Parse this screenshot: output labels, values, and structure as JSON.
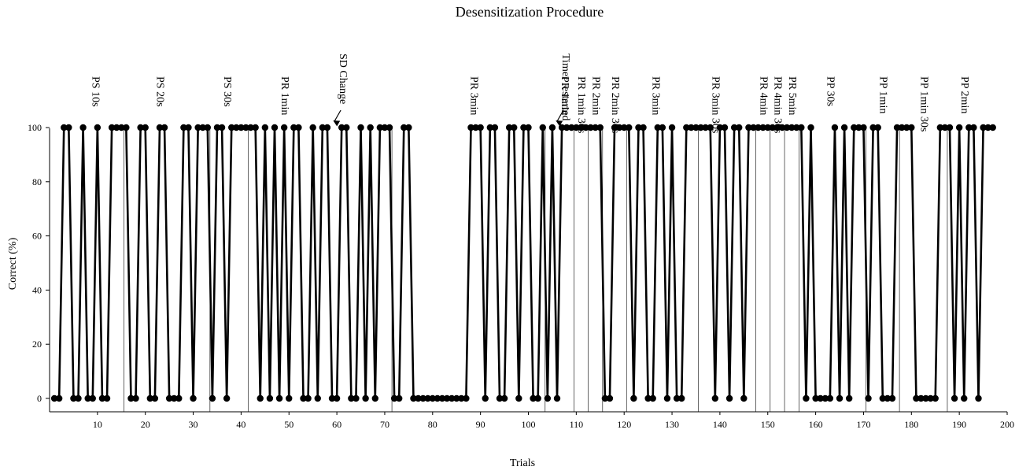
{
  "chart_data": {
    "type": "line",
    "title": "Desensitization Procedure",
    "xlabel": "Trials",
    "ylabel": "Correct (%)",
    "xlim": [
      0,
      200
    ],
    "ylim": [
      -5,
      100
    ],
    "xticks": [
      10,
      20,
      30,
      40,
      50,
      60,
      70,
      80,
      90,
      100,
      110,
      120,
      130,
      140,
      150,
      160,
      170,
      180,
      190,
      200
    ],
    "yticks": [
      0,
      20,
      40,
      60,
      80,
      100
    ],
    "grid": false,
    "legend": "none",
    "line_color": "#000000",
    "marker_color": "#000000",
    "series": [
      {
        "x": [
          1,
          2,
          3,
          4,
          5,
          6,
          7,
          8,
          9,
          10,
          11,
          12,
          13,
          14,
          15,
          16,
          17,
          18,
          19,
          20,
          21,
          22,
          23,
          24,
          25,
          26,
          27,
          28,
          29,
          30,
          31,
          32,
          33,
          34,
          35,
          36,
          37,
          38,
          39,
          40,
          41,
          42,
          43,
          44,
          45,
          46,
          47,
          48,
          49,
          50,
          51,
          52,
          53,
          54,
          55,
          56,
          57,
          58,
          59,
          60,
          61,
          62,
          63,
          64,
          65,
          66,
          67,
          68,
          69,
          70,
          71,
          72,
          73,
          74,
          75,
          76,
          77,
          78,
          79,
          80,
          81,
          82,
          83,
          84,
          85,
          86,
          87,
          88,
          89,
          90,
          91,
          92,
          93,
          94,
          95,
          96,
          97,
          98,
          99,
          100,
          101,
          102,
          103,
          104,
          105,
          106,
          107,
          108,
          109,
          110,
          111,
          112,
          113,
          114,
          115,
          116,
          117,
          118,
          119,
          120,
          121,
          122,
          123,
          124,
          125,
          126,
          127,
          128,
          129,
          130,
          131,
          132,
          133,
          134,
          135,
          136,
          137,
          138,
          139,
          140,
          141,
          142,
          143,
          144,
          145,
          146,
          147,
          148,
          149,
          150,
          151,
          152,
          153,
          154,
          155,
          156,
          157,
          158,
          159,
          160,
          161,
          162,
          163,
          164,
          165,
          166,
          167,
          168,
          169,
          170,
          171,
          172,
          173,
          174,
          175,
          176,
          177,
          178,
          179,
          180,
          181,
          182,
          183,
          184,
          185,
          186,
          187,
          188,
          189,
          190,
          191,
          192,
          193,
          194,
          195,
          196,
          197
        ],
        "y": [
          0,
          0,
          100,
          100,
          0,
          0,
          100,
          0,
          0,
          100,
          0,
          0,
          100,
          100,
          100,
          100,
          0,
          0,
          100,
          100,
          0,
          0,
          100,
          100,
          0,
          0,
          0,
          100,
          100,
          0,
          100,
          100,
          100,
          0,
          100,
          100,
          0,
          100,
          100,
          100,
          100,
          100,
          100,
          0,
          100,
          0,
          100,
          0,
          100,
          0,
          100,
          100,
          0,
          0,
          100,
          0,
          100,
          100,
          0,
          0,
          100,
          100,
          0,
          0,
          100,
          0,
          100,
          0,
          100,
          100,
          100,
          0,
          0,
          100,
          100,
          0,
          0,
          0,
          0,
          0,
          0,
          0,
          0,
          0,
          0,
          0,
          0,
          100,
          100,
          100,
          0,
          100,
          100,
          0,
          0,
          100,
          100,
          0,
          100,
          100,
          0,
          0,
          100,
          0,
          100,
          0,
          100,
          100,
          100,
          100,
          100,
          100,
          100,
          100,
          100,
          0,
          0,
          100,
          100,
          100,
          100,
          0,
          100,
          100,
          0,
          0,
          100,
          100,
          0,
          100,
          0,
          0,
          100,
          100,
          100,
          100,
          100,
          100,
          0,
          100,
          100,
          0,
          100,
          100,
          0,
          100,
          100,
          100,
          100,
          100,
          100,
          100,
          100,
          100,
          100,
          100,
          100,
          0,
          100,
          0,
          0,
          0,
          0,
          100,
          0,
          100,
          0,
          100,
          100,
          100,
          0,
          100,
          100,
          0,
          0,
          0,
          100,
          100,
          100,
          100,
          0,
          0,
          0,
          0,
          0,
          100,
          100,
          100,
          0,
          100,
          0,
          100,
          100,
          0,
          100,
          100,
          100
        ]
      }
    ],
    "phase_lines": [
      15.5,
      33.5,
      41.5,
      71.5,
      103.5,
      109.5,
      112.5,
      115.5,
      120.5,
      135.5,
      147.5,
      150.5,
      153.5,
      156.5,
      170.5,
      177.5,
      187.5
    ],
    "annotations": [
      {
        "text": "PS 10s",
        "x": 9.5
      },
      {
        "text": "PS 20s",
        "x": 23
      },
      {
        "text": "PS 30s",
        "x": 37
      },
      {
        "text": "PR 1min",
        "x": 49
      },
      {
        "text": "PR 3min",
        "x": 88.5
      },
      {
        "text": "PR 1min",
        "x": 107.5
      },
      {
        "text": "PR 1min 30s",
        "x": 111
      },
      {
        "text": "PR 2min",
        "x": 114
      },
      {
        "text": "PR 2min 30s",
        "x": 118
      },
      {
        "text": "PR 3min",
        "x": 126.5
      },
      {
        "text": "PR 3min 30s",
        "x": 139
      },
      {
        "text": "PR 4min",
        "x": 149
      },
      {
        "text": "PR 4min 30s",
        "x": 152
      },
      {
        "text": "PR 5min",
        "x": 155
      },
      {
        "text": "PP 30s",
        "x": 163
      },
      {
        "text": "PP 1min",
        "x": 174
      },
      {
        "text": "PP 1min 30s",
        "x": 182.5
      },
      {
        "text": "PP 2min",
        "x": 191
      }
    ],
    "arrows": [
      {
        "text": "SD Change",
        "target_x": 59.5
      },
      {
        "text": "Timer restarted",
        "target_x": 106
      }
    ]
  }
}
